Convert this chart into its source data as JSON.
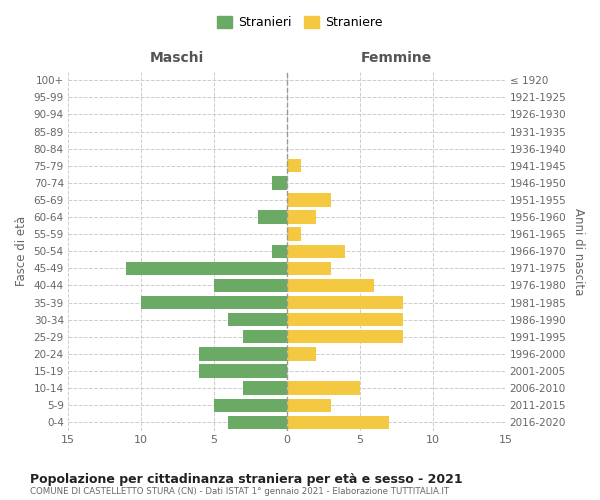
{
  "age_groups": [
    "100+",
    "95-99",
    "90-94",
    "85-89",
    "80-84",
    "75-79",
    "70-74",
    "65-69",
    "60-64",
    "55-59",
    "50-54",
    "45-49",
    "40-44",
    "35-39",
    "30-34",
    "25-29",
    "20-24",
    "15-19",
    "10-14",
    "5-9",
    "0-4"
  ],
  "birth_years": [
    "≤ 1920",
    "1921-1925",
    "1926-1930",
    "1931-1935",
    "1936-1940",
    "1941-1945",
    "1946-1950",
    "1951-1955",
    "1956-1960",
    "1961-1965",
    "1966-1970",
    "1971-1975",
    "1976-1980",
    "1981-1985",
    "1986-1990",
    "1991-1995",
    "1996-2000",
    "2001-2005",
    "2006-2010",
    "2011-2015",
    "2016-2020"
  ],
  "maschi": [
    0,
    0,
    0,
    0,
    0,
    0,
    1,
    0,
    2,
    0,
    1,
    11,
    5,
    10,
    4,
    3,
    6,
    6,
    3,
    5,
    4
  ],
  "femmine": [
    0,
    0,
    0,
    0,
    0,
    1,
    0,
    3,
    2,
    1,
    4,
    3,
    6,
    8,
    8,
    8,
    2,
    0,
    5,
    3,
    7
  ],
  "maschi_color": "#6aaa64",
  "femmine_color": "#f5c842",
  "title": "Popolazione per cittadinanza straniera per età e sesso - 2021",
  "subtitle": "COMUNE DI CASTELLETTO STURA (CN) - Dati ISTAT 1° gennaio 2021 - Elaborazione TUTTITALIA.IT",
  "xlabel_left": "Maschi",
  "xlabel_right": "Femmine",
  "ylabel_left": "Fasce di età",
  "ylabel_right": "Anni di nascita",
  "legend_maschi": "Stranieri",
  "legend_femmine": "Straniere",
  "xlim": 15,
  "background_color": "#ffffff",
  "grid_color": "#cccccc"
}
